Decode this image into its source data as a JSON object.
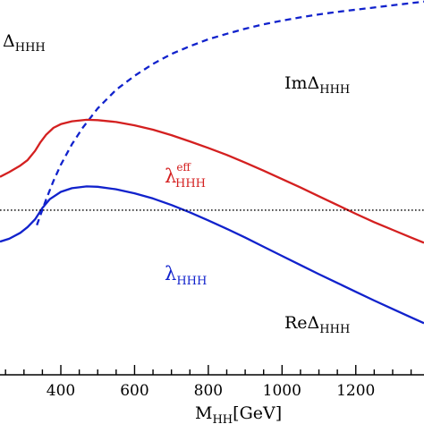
{
  "chart_data": {
    "type": "line",
    "title": "",
    "ylabel_main": "Δ",
    "ylabel_sub": "HHH",
    "xlabel_main": "M",
    "xlabel_sub": "HH",
    "xlabel_unit": "[GeV]",
    "xlim": [
      235,
      1385
    ],
    "ylim": [
      0,
      1
    ],
    "x_ticks": [
      400,
      600,
      800,
      1000,
      1200
    ],
    "x_tick_labels": [
      "400",
      "600",
      "800",
      "1000",
      "1200"
    ],
    "zero_line_y": 0.45,
    "grid": false,
    "series": [
      {
        "key": "im",
        "label_main": "ImΔ",
        "label_sub": "HHH",
        "label_sup": "",
        "color": "#1122cc",
        "style": "dashed",
        "points": [
          [
            335,
            0.409
          ],
          [
            360,
            0.479
          ],
          [
            380,
            0.53
          ],
          [
            400,
            0.574
          ],
          [
            430,
            0.63
          ],
          [
            460,
            0.676
          ],
          [
            500,
            0.728
          ],
          [
            550,
            0.779
          ],
          [
            600,
            0.817
          ],
          [
            650,
            0.85
          ],
          [
            700,
            0.877
          ],
          [
            750,
            0.898
          ],
          [
            800,
            0.917
          ],
          [
            850,
            0.932
          ],
          [
            900,
            0.946
          ],
          [
            950,
            0.958
          ],
          [
            1000,
            0.968
          ],
          [
            1050,
            0.977
          ],
          [
            1100,
            0.985
          ],
          [
            1150,
            0.992
          ],
          [
            1200,
            0.998
          ],
          [
            1250,
            1.004
          ],
          [
            1300,
            1.01
          ],
          [
            1385,
            1.02
          ]
        ]
      },
      {
        "key": "lam_eff",
        "label_main": "λ",
        "label_sub": "HHH",
        "label_sup": "eff",
        "color": "#d42020",
        "style": "solid",
        "points": [
          [
            235,
            0.541
          ],
          [
            260,
            0.554
          ],
          [
            290,
            0.572
          ],
          [
            310,
            0.587
          ],
          [
            330,
            0.612
          ],
          [
            345,
            0.636
          ],
          [
            360,
            0.656
          ],
          [
            380,
            0.675
          ],
          [
            400,
            0.685
          ],
          [
            430,
            0.693
          ],
          [
            470,
            0.697
          ],
          [
            500,
            0.696
          ],
          [
            550,
            0.691
          ],
          [
            600,
            0.682
          ],
          [
            650,
            0.67
          ],
          [
            700,
            0.655
          ],
          [
            750,
            0.638
          ],
          [
            800,
            0.62
          ],
          [
            850,
            0.601
          ],
          [
            900,
            0.58
          ],
          [
            950,
            0.558
          ],
          [
            1000,
            0.535
          ],
          [
            1050,
            0.512
          ],
          [
            1100,
            0.488
          ],
          [
            1150,
            0.464
          ],
          [
            1200,
            0.44
          ],
          [
            1250,
            0.417
          ],
          [
            1300,
            0.396
          ],
          [
            1350,
            0.375
          ],
          [
            1385,
            0.361
          ]
        ]
      },
      {
        "key": "lam",
        "label_main": "λ",
        "label_sub": "HHH",
        "label_sup": "",
        "color": "#1122cc",
        "style": "solid",
        "points": [
          [
            235,
            0.364
          ],
          [
            260,
            0.372
          ],
          [
            290,
            0.388
          ],
          [
            310,
            0.404
          ],
          [
            330,
            0.425
          ],
          [
            350,
            0.456
          ],
          [
            370,
            0.48
          ],
          [
            400,
            0.5
          ],
          [
            430,
            0.51
          ],
          [
            470,
            0.515
          ],
          [
            500,
            0.514
          ],
          [
            550,
            0.507
          ],
          [
            600,
            0.496
          ],
          [
            650,
            0.482
          ],
          [
            700,
            0.464
          ],
          [
            750,
            0.444
          ],
          [
            800,
            0.422
          ],
          [
            850,
            0.399
          ],
          [
            900,
            0.375
          ],
          [
            950,
            0.35
          ],
          [
            1000,
            0.325
          ],
          [
            1050,
            0.3
          ],
          [
            1100,
            0.275
          ],
          [
            1150,
            0.251
          ],
          [
            1200,
            0.227
          ],
          [
            1250,
            0.203
          ],
          [
            1300,
            0.18
          ],
          [
            1350,
            0.157
          ],
          [
            1385,
            0.141
          ]
        ]
      },
      {
        "key": "re",
        "label_main": "ReΔ",
        "label_sub": "HHH",
        "label_sup": "",
        "color": "#000000",
        "style": "none",
        "points": []
      }
    ]
  }
}
